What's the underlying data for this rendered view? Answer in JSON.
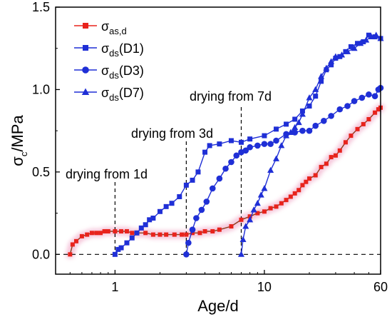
{
  "chart_data": {
    "type": "line",
    "xlabel": "Age/d",
    "ylabel_main": "σ",
    "ylabel_sub": "c",
    "ylabel_tail": "/MPa",
    "xscale": "log",
    "xlim": [
      0.4,
      60
    ],
    "ylim": [
      -0.12,
      1.5
    ],
    "x_ticks": [
      {
        "value": 1,
        "label": "1"
      },
      {
        "value": 10,
        "label": "10"
      },
      {
        "value": 60,
        "label": "60"
      }
    ],
    "y_ticks": [
      {
        "value": 0.0,
        "label": "0.0"
      },
      {
        "value": 0.5,
        "label": "0.5"
      },
      {
        "value": 1.0,
        "label": "1.0"
      },
      {
        "value": 1.5,
        "label": "1.5"
      }
    ],
    "baseline": {
      "y": 0,
      "style": "dashed"
    },
    "legend_position": "top-left",
    "annotations": [
      {
        "text": "drying from 1d",
        "x": 1
      },
      {
        "text": "drying from 3d",
        "x": 3
      },
      {
        "text": "drying from 7d",
        "x": 7
      }
    ],
    "series": [
      {
        "name_main": "σ",
        "name_sub": "as,d",
        "name_tail": "",
        "color": "#e8231c",
        "marker": "square",
        "points": [
          [
            0.5,
            0.0
          ],
          [
            0.52,
            0.06
          ],
          [
            0.55,
            0.08
          ],
          [
            0.6,
            0.11
          ],
          [
            0.65,
            0.12
          ],
          [
            0.7,
            0.13
          ],
          [
            0.75,
            0.13
          ],
          [
            0.8,
            0.13
          ],
          [
            0.85,
            0.14
          ],
          [
            0.9,
            0.14
          ],
          [
            1.0,
            0.14
          ],
          [
            1.1,
            0.14
          ],
          [
            1.2,
            0.14
          ],
          [
            1.3,
            0.13
          ],
          [
            1.4,
            0.13
          ],
          [
            1.6,
            0.13
          ],
          [
            1.8,
            0.12
          ],
          [
            2.0,
            0.12
          ],
          [
            2.2,
            0.12
          ],
          [
            2.5,
            0.12
          ],
          [
            2.8,
            0.12
          ],
          [
            3.0,
            0.12
          ],
          [
            3.3,
            0.13
          ],
          [
            3.7,
            0.13
          ],
          [
            4.0,
            0.14
          ],
          [
            4.5,
            0.14
          ],
          [
            5.0,
            0.15
          ],
          [
            6.0,
            0.17
          ],
          [
            7.0,
            0.21
          ],
          [
            8.0,
            0.23
          ],
          [
            9.0,
            0.25
          ],
          [
            10.0,
            0.26
          ],
          [
            11.0,
            0.28
          ],
          [
            12.0,
            0.29
          ],
          [
            13.0,
            0.31
          ],
          [
            14.0,
            0.33
          ],
          [
            15.0,
            0.35
          ],
          [
            16.0,
            0.37
          ],
          [
            17.0,
            0.39
          ],
          [
            18.0,
            0.42
          ],
          [
            19.0,
            0.44
          ],
          [
            20.0,
            0.46
          ],
          [
            22.0,
            0.48
          ],
          [
            24.0,
            0.53
          ],
          [
            26.0,
            0.55
          ],
          [
            28.0,
            0.59
          ],
          [
            30.0,
            0.6
          ],
          [
            32.0,
            0.63
          ],
          [
            35.0,
            0.68
          ],
          [
            38.0,
            0.72
          ],
          [
            42.0,
            0.76
          ],
          [
            46.0,
            0.79
          ],
          [
            50.0,
            0.82
          ],
          [
            55.0,
            0.86
          ],
          [
            58.0,
            0.88
          ],
          [
            60.0,
            0.89
          ]
        ]
      },
      {
        "name_main": "σ",
        "name_sub": "ds",
        "name_tail": "(D1)",
        "color": "#1f2fd6",
        "marker": "square",
        "points": [
          [
            1.0,
            0.0
          ],
          [
            1.05,
            0.03
          ],
          [
            1.1,
            0.04
          ],
          [
            1.2,
            0.07
          ],
          [
            1.3,
            0.1
          ],
          [
            1.4,
            0.13
          ],
          [
            1.5,
            0.16
          ],
          [
            1.6,
            0.18
          ],
          [
            1.7,
            0.21
          ],
          [
            1.8,
            0.22
          ],
          [
            2.0,
            0.26
          ],
          [
            2.2,
            0.29
          ],
          [
            2.4,
            0.31
          ],
          [
            2.7,
            0.35
          ],
          [
            3.0,
            0.42
          ],
          [
            3.3,
            0.45
          ],
          [
            3.6,
            0.5
          ],
          [
            4.0,
            0.62
          ],
          [
            4.3,
            0.66
          ],
          [
            5.0,
            0.67
          ],
          [
            6.0,
            0.69
          ],
          [
            7.0,
            0.68
          ],
          [
            8.0,
            0.7
          ],
          [
            10.0,
            0.72
          ],
          [
            12.0,
            0.76
          ],
          [
            14.0,
            0.79
          ],
          [
            16.0,
            0.82
          ],
          [
            18.0,
            0.87
          ],
          [
            20.0,
            0.9
          ],
          [
            22.0,
            0.96
          ],
          [
            24.0,
            1.05
          ],
          [
            26.0,
            1.12
          ],
          [
            28.0,
            1.15
          ],
          [
            30.0,
            1.19
          ],
          [
            32.0,
            1.2
          ],
          [
            35.0,
            1.23
          ],
          [
            38.0,
            1.26
          ],
          [
            42.0,
            1.28
          ],
          [
            46.0,
            1.29
          ],
          [
            50.0,
            1.33
          ],
          [
            55.0,
            1.32
          ],
          [
            60.0,
            1.31
          ]
        ]
      },
      {
        "name_main": "σ",
        "name_sub": "ds",
        "name_tail": "(D3)",
        "color": "#1f2fd6",
        "marker": "circle",
        "points": [
          [
            3.0,
            0.0
          ],
          [
            3.1,
            0.07
          ],
          [
            3.3,
            0.15
          ],
          [
            3.5,
            0.22
          ],
          [
            3.8,
            0.27
          ],
          [
            4.1,
            0.32
          ],
          [
            4.5,
            0.4
          ],
          [
            5.0,
            0.46
          ],
          [
            5.5,
            0.52
          ],
          [
            6.0,
            0.56
          ],
          [
            6.5,
            0.6
          ],
          [
            7.0,
            0.62
          ],
          [
            7.5,
            0.63
          ],
          [
            8.0,
            0.65
          ],
          [
            9.0,
            0.66
          ],
          [
            10.0,
            0.67
          ],
          [
            11.0,
            0.67
          ],
          [
            12.0,
            0.69
          ],
          [
            14.0,
            0.73
          ],
          [
            16.0,
            0.74
          ],
          [
            18.0,
            0.75
          ],
          [
            20.0,
            0.75
          ],
          [
            22.0,
            0.78
          ],
          [
            25.0,
            0.81
          ],
          [
            28.0,
            0.84
          ],
          [
            32.0,
            0.88
          ],
          [
            36.0,
            0.9
          ],
          [
            40.0,
            0.93
          ],
          [
            45.0,
            0.95
          ],
          [
            50.0,
            0.97
          ],
          [
            55.0,
            0.96
          ],
          [
            58.0,
            1.0
          ],
          [
            60.0,
            1.01
          ]
        ]
      },
      {
        "name_main": "σ",
        "name_sub": "ds",
        "name_tail": "(D7)",
        "color": "#1f2fd6",
        "marker": "triangle",
        "points": [
          [
            7.0,
            0.0
          ],
          [
            7.2,
            0.09
          ],
          [
            7.5,
            0.17
          ],
          [
            8.0,
            0.21
          ],
          [
            8.5,
            0.27
          ],
          [
            9.0,
            0.31
          ],
          [
            9.5,
            0.36
          ],
          [
            10.0,
            0.4
          ],
          [
            11.0,
            0.51
          ],
          [
            12.0,
            0.58
          ],
          [
            13.0,
            0.66
          ],
          [
            14.0,
            0.72
          ],
          [
            15.0,
            0.74
          ],
          [
            16.0,
            0.77
          ],
          [
            17.0,
            0.8
          ],
          [
            18.0,
            0.85
          ],
          [
            20.0,
            0.95
          ],
          [
            22.0,
            1.0
          ],
          [
            24.0,
            1.08
          ],
          [
            26.0,
            1.13
          ],
          [
            28.0,
            1.17
          ],
          [
            30.0,
            1.2
          ],
          [
            33.0,
            1.21
          ],
          [
            36.0,
            1.23
          ],
          [
            40.0,
            1.25
          ],
          [
            44.0,
            1.28
          ],
          [
            48.0,
            1.3
          ],
          [
            52.0,
            1.32
          ],
          [
            56.0,
            1.33
          ],
          [
            60.0,
            1.31
          ]
        ]
      }
    ]
  }
}
